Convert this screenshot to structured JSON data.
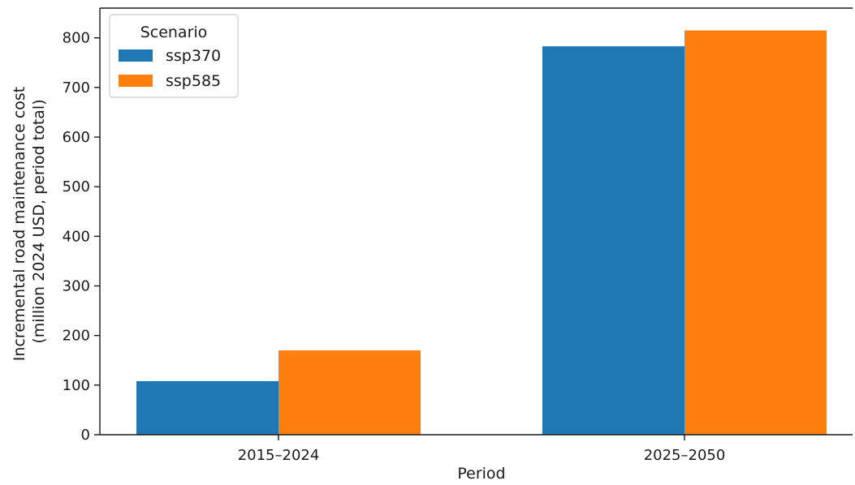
{
  "chart_data": {
    "type": "bar",
    "title": "",
    "xlabel": "Period",
    "ylabel": [
      "Incremental road maintenance cost",
      "(million 2024 USD, period total)"
    ],
    "categories": [
      "2015–2024",
      "2025–2050"
    ],
    "series": [
      {
        "name": "ssp370",
        "values": [
          108,
          783
        ],
        "color": "#1f77b4"
      },
      {
        "name": "ssp585",
        "values": [
          170,
          815
        ],
        "color": "#ff7f0e"
      }
    ],
    "ylim": [
      0,
      860
    ],
    "yticks": [
      0,
      100,
      200,
      300,
      400,
      500,
      600,
      700,
      800
    ],
    "grid": false,
    "legend": {
      "title": "Scenario",
      "placement": "top-left"
    }
  }
}
